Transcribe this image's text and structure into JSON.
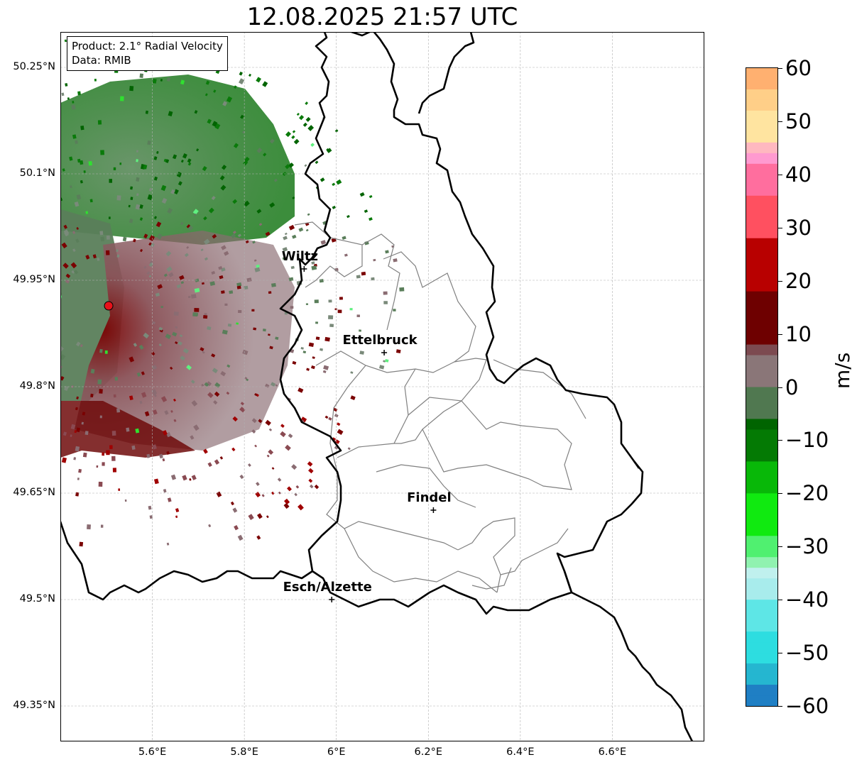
{
  "title": "12.08.2025 21:57 UTC",
  "info_box": {
    "product": "Product: 2.1° Radial Velocity",
    "data": "Data: RMIB"
  },
  "map": {
    "lon_range": [
      5.4,
      6.8
    ],
    "lat_range": [
      49.3,
      50.3
    ],
    "lat_ticks": [
      {
        "value": 50.25,
        "label": "50.25°N"
      },
      {
        "value": 50.1,
        "label": "50.1°N"
      },
      {
        "value": 49.95,
        "label": "49.95°N"
      },
      {
        "value": 49.8,
        "label": "49.8°N"
      },
      {
        "value": 49.65,
        "label": "49.65°N"
      },
      {
        "value": 49.5,
        "label": "49.5°N"
      },
      {
        "value": 49.35,
        "label": "49.35°N"
      }
    ],
    "lon_ticks": [
      {
        "value": 5.6,
        "label": "5.6°E"
      },
      {
        "value": 5.8,
        "label": "5.8°E"
      },
      {
        "value": 6.0,
        "label": "6°E"
      },
      {
        "value": 6.2,
        "label": "6.2°E"
      },
      {
        "value": 6.4,
        "label": "6.4°E"
      },
      {
        "value": 6.6,
        "label": "6.6°E"
      }
    ],
    "grid": true,
    "radar_site": {
      "lon": 5.505,
      "lat": 49.914,
      "color": "#e8121a"
    },
    "cities": [
      {
        "name": "Wiltz",
        "lon": 5.93,
        "lat": 49.966
      },
      {
        "name": "Ettelbruck",
        "lon": 6.104,
        "lat": 49.848
      },
      {
        "name": "Findel",
        "lon": 6.211,
        "lat": 49.626
      },
      {
        "name": "Esch/Alzette",
        "lon": 5.99,
        "lat": 49.5
      }
    ]
  },
  "colorbar": {
    "unit": "m/s",
    "range": [
      -60,
      60
    ],
    "ticks": [
      {
        "value": 60,
        "label": "60"
      },
      {
        "value": 50,
        "label": "50"
      },
      {
        "value": 40,
        "label": "40"
      },
      {
        "value": 30,
        "label": "30"
      },
      {
        "value": 20,
        "label": "20"
      },
      {
        "value": 10,
        "label": "10"
      },
      {
        "value": 0,
        "label": "0"
      },
      {
        "value": -10,
        "label": "−10"
      },
      {
        "value": -20,
        "label": "−20"
      },
      {
        "value": -30,
        "label": "−30"
      },
      {
        "value": -40,
        "label": "−40"
      },
      {
        "value": -50,
        "label": "−50"
      },
      {
        "value": -60,
        "label": "−60"
      }
    ],
    "stops": [
      {
        "value": -60,
        "color": "#1f7fc4"
      },
      {
        "value": -56,
        "color": "#25b6d0"
      },
      {
        "value": -52,
        "color": "#2ddde0"
      },
      {
        "value": -46,
        "color": "#5ee6e6"
      },
      {
        "value": -40,
        "color": "#a8ecec"
      },
      {
        "value": -36,
        "color": "#c0f0ee"
      },
      {
        "value": -34,
        "color": "#90f2b0"
      },
      {
        "value": -31,
        "color": "#50f070"
      },
      {
        "value": -27,
        "color": "#10ea10"
      },
      {
        "value": -20,
        "color": "#08b808"
      },
      {
        "value": -13,
        "color": "#047a04"
      },
      {
        "value": -8,
        "color": "#006400"
      },
      {
        "value": -6,
        "color": "#507850"
      },
      {
        "value": 0,
        "color": "#6e866e"
      },
      {
        "value": 1,
        "color": "#8a7678"
      },
      {
        "value": 6,
        "color": "#7c4a50"
      },
      {
        "value": 9,
        "color": "#6e0000"
      },
      {
        "value": 18,
        "color": "#b80000"
      },
      {
        "value": 28,
        "color": "#f80000"
      },
      {
        "value": 29,
        "color": "#ff5060"
      },
      {
        "value": 36,
        "color": "#ff6e9e"
      },
      {
        "value": 42,
        "color": "#ff9ad0"
      },
      {
        "value": 45,
        "color": "#ffb8c0"
      },
      {
        "value": 47,
        "color": "#ffe4a0"
      },
      {
        "value": 52,
        "color": "#ffcf88"
      },
      {
        "value": 56,
        "color": "#ffb070"
      },
      {
        "value": 60,
        "color": "#ff9850"
      }
    ]
  }
}
